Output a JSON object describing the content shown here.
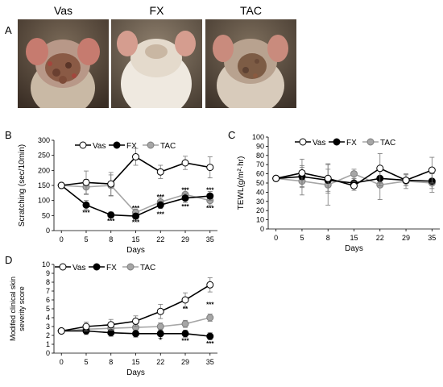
{
  "panel_a": {
    "letter": "A",
    "photos": [
      {
        "label": "Vas",
        "image": "mouse-back-photo-severe-dermatitis"
      },
      {
        "label": "FX",
        "image": "mouse-back-photo-healthy-skin"
      },
      {
        "label": "TAC",
        "image": "mouse-back-photo-moderate-dermatitis"
      }
    ]
  },
  "colors": {
    "vas": "#ffffff",
    "fx": "#000000",
    "tac": "#a6a6a6",
    "line_vas": "#000000"
  },
  "chart_data": [
    {
      "panel": "B",
      "type": "line",
      "ylabel": "Scratching (sec/10min)",
      "xlabel": "Days",
      "categories": [
        "0",
        "5",
        "8",
        "15",
        "22",
        "29",
        "35"
      ],
      "ylim": [
        0,
        300
      ],
      "yticks": [
        "0",
        "50",
        "100",
        "150",
        "200",
        "250",
        "300"
      ],
      "legend": {
        "position": "top",
        "entries": [
          "Vas",
          "FX",
          "TAC"
        ]
      },
      "series": [
        {
          "name": "Vas",
          "values": [
            150,
            160,
            155,
            245,
            195,
            225,
            210
          ],
          "errors": [
            0,
            38,
            38,
            28,
            22,
            22,
            35
          ]
        },
        {
          "name": "FX",
          "values": [
            150,
            85,
            52,
            48,
            85,
            108,
            115
          ],
          "errors": [
            0,
            15,
            10,
            10,
            12,
            15,
            15
          ]
        },
        {
          "name": "TAC",
          "values": [
            150,
            145,
            150,
            60,
            95,
            120,
            100
          ],
          "errors": [
            0,
            25,
            35,
            12,
            15,
            20,
            15
          ]
        }
      ],
      "annotations": [
        {
          "x": "5",
          "y": 60,
          "text": "***"
        },
        {
          "x": "8",
          "y": 32,
          "text": "***"
        },
        {
          "x": "15",
          "y": 28,
          "text": "***"
        },
        {
          "x": "15",
          "y": 75,
          "text": "***"
        },
        {
          "x": "22",
          "y": 55,
          "text": "***"
        },
        {
          "x": "22",
          "y": 112,
          "text": "***"
        },
        {
          "x": "29",
          "y": 80,
          "text": "***"
        },
        {
          "x": "29",
          "y": 135,
          "text": "***"
        },
        {
          "x": "35",
          "y": 75,
          "text": "***"
        },
        {
          "x": "35",
          "y": 135,
          "text": "***"
        }
      ]
    },
    {
      "panel": "C",
      "type": "line",
      "ylabel": "TEWL(g/m²·hr)",
      "xlabel": "Days",
      "categories": [
        "0",
        "5",
        "8",
        "15",
        "22",
        "29",
        "35"
      ],
      "ylim": [
        0,
        100
      ],
      "yticks": [
        "0",
        "10",
        "20",
        "30",
        "40",
        "50",
        "60",
        "70",
        "80",
        "90",
        "100"
      ],
      "legend": {
        "position": "top",
        "entries": [
          "Vas",
          "FX",
          "TAC"
        ]
      },
      "series": [
        {
          "name": "Vas",
          "values": [
            55,
            61,
            55,
            47,
            66,
            53,
            64
          ],
          "errors": [
            0,
            15,
            16,
            5,
            16,
            6,
            14
          ]
        },
        {
          "name": "FX",
          "values": [
            55,
            57,
            53,
            50,
            55,
            53,
            52
          ],
          "errors": [
            0,
            12,
            12,
            5,
            8,
            6,
            8
          ]
        },
        {
          "name": "TAC",
          "values": [
            55,
            52,
            48,
            60,
            48,
            52,
            50
          ],
          "errors": [
            0,
            15,
            22,
            5,
            16,
            8,
            10
          ]
        }
      ],
      "annotations": []
    },
    {
      "panel": "D",
      "type": "line",
      "ylabel": "Modified clinical skin severity score",
      "xlabel": "Days",
      "categories": [
        "0",
        "5",
        "8",
        "15",
        "22",
        "29",
        "35"
      ],
      "ylim": [
        0,
        10
      ],
      "yticks": [
        "0",
        "1",
        "2",
        "3",
        "4",
        "5",
        "6",
        "7",
        "8",
        "9",
        "10"
      ],
      "legend": {
        "position": "top",
        "entries": [
          "Vas",
          "FX",
          "TAC"
        ]
      },
      "series": [
        {
          "name": "Vas",
          "values": [
            2.5,
            3.0,
            3.2,
            3.6,
            4.7,
            6.0,
            7.7
          ],
          "errors": [
            0,
            0.5,
            0.6,
            0.6,
            0.8,
            0.8,
            0.8
          ]
        },
        {
          "name": "FX",
          "values": [
            2.5,
            2.5,
            2.3,
            2.2,
            2.2,
            2.2,
            1.9
          ],
          "errors": [
            0,
            0.4,
            0.4,
            0.4,
            0.5,
            0.4,
            0.4
          ]
        },
        {
          "name": "TAC",
          "values": [
            2.5,
            2.7,
            2.8,
            2.9,
            3.0,
            3.3,
            4.0
          ],
          "errors": [
            0,
            0.4,
            0.4,
            0.4,
            0.4,
            0.4,
            0.4
          ]
        }
      ],
      "annotations": [
        {
          "x": "22",
          "y": 1.5,
          "text": "*"
        },
        {
          "x": "29",
          "y": 1.4,
          "text": "***"
        },
        {
          "x": "29",
          "y": 5.0,
          "text": "**"
        },
        {
          "x": "35",
          "y": 1.1,
          "text": "***"
        },
        {
          "x": "35",
          "y": 5.5,
          "text": "***"
        }
      ]
    }
  ]
}
